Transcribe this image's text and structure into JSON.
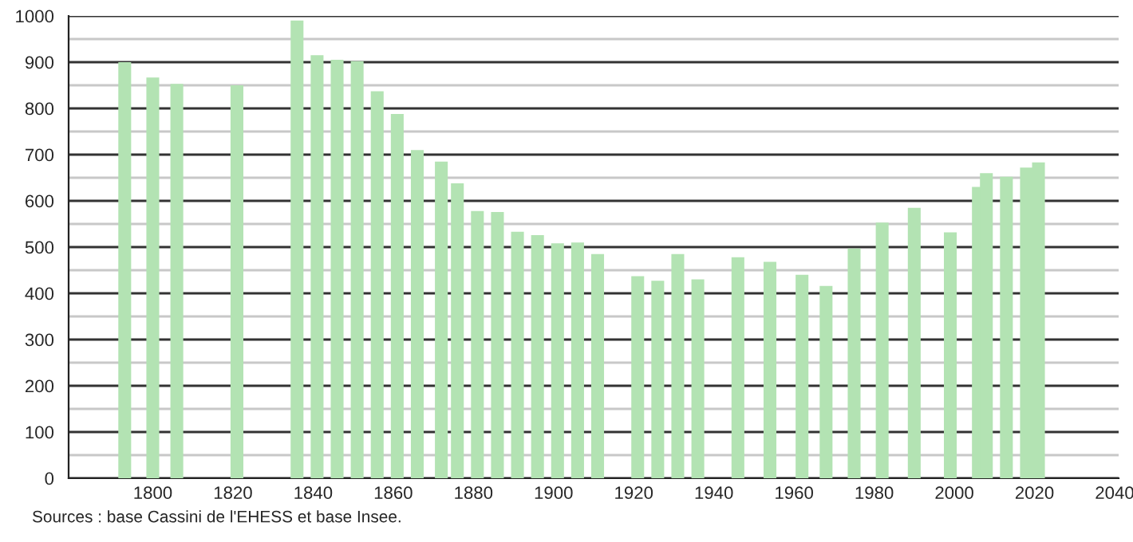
{
  "chart_data": {
    "type": "bar",
    "x": [
      1793,
      1800,
      1806,
      1821,
      1836,
      1841,
      1846,
      1851,
      1856,
      1861,
      1866,
      1872,
      1876,
      1881,
      1886,
      1891,
      1896,
      1901,
      1906,
      1911,
      1921,
      1926,
      1931,
      1936,
      1946,
      1954,
      1962,
      1968,
      1975,
      1982,
      1990,
      1999,
      2006,
      2008,
      2013,
      2018,
      2021
    ],
    "values": [
      900,
      867,
      853,
      850,
      990,
      915,
      905,
      902,
      837,
      788,
      710,
      685,
      638,
      578,
      576,
      533,
      526,
      508,
      510,
      485,
      437,
      427,
      485,
      430,
      478,
      468,
      440,
      416,
      497,
      553,
      585,
      532,
      630,
      660,
      652,
      672,
      683
    ],
    "color": "#b3e3b3",
    "xlim": [
      1779,
      2041
    ],
    "xticks": [
      1800,
      1820,
      1840,
      1860,
      1880,
      1900,
      1920,
      1940,
      1960,
      1980,
      2000,
      2020,
      2040
    ],
    "ylim": [
      0,
      1000
    ],
    "yticks": [
      0,
      {
        "value": 50,
        "label": null
      },
      100,
      {
        "value": 150,
        "label": null
      },
      200,
      {
        "value": 250,
        "label": null
      },
      300,
      {
        "value": 350,
        "label": null
      },
      400,
      {
        "value": 450,
        "label": null
      },
      500,
      {
        "value": 550,
        "label": null
      },
      600,
      {
        "value": 650,
        "label": null
      },
      700,
      {
        "value": 750,
        "label": null
      },
      800,
      {
        "value": 850,
        "label": null
      },
      900,
      {
        "value": 950,
        "label": null
      },
      1000
    ],
    "grid": "y",
    "legend": false,
    "annotations": [
      "Sources : base Cassini de l'EHESS et base Insee."
    ]
  }
}
